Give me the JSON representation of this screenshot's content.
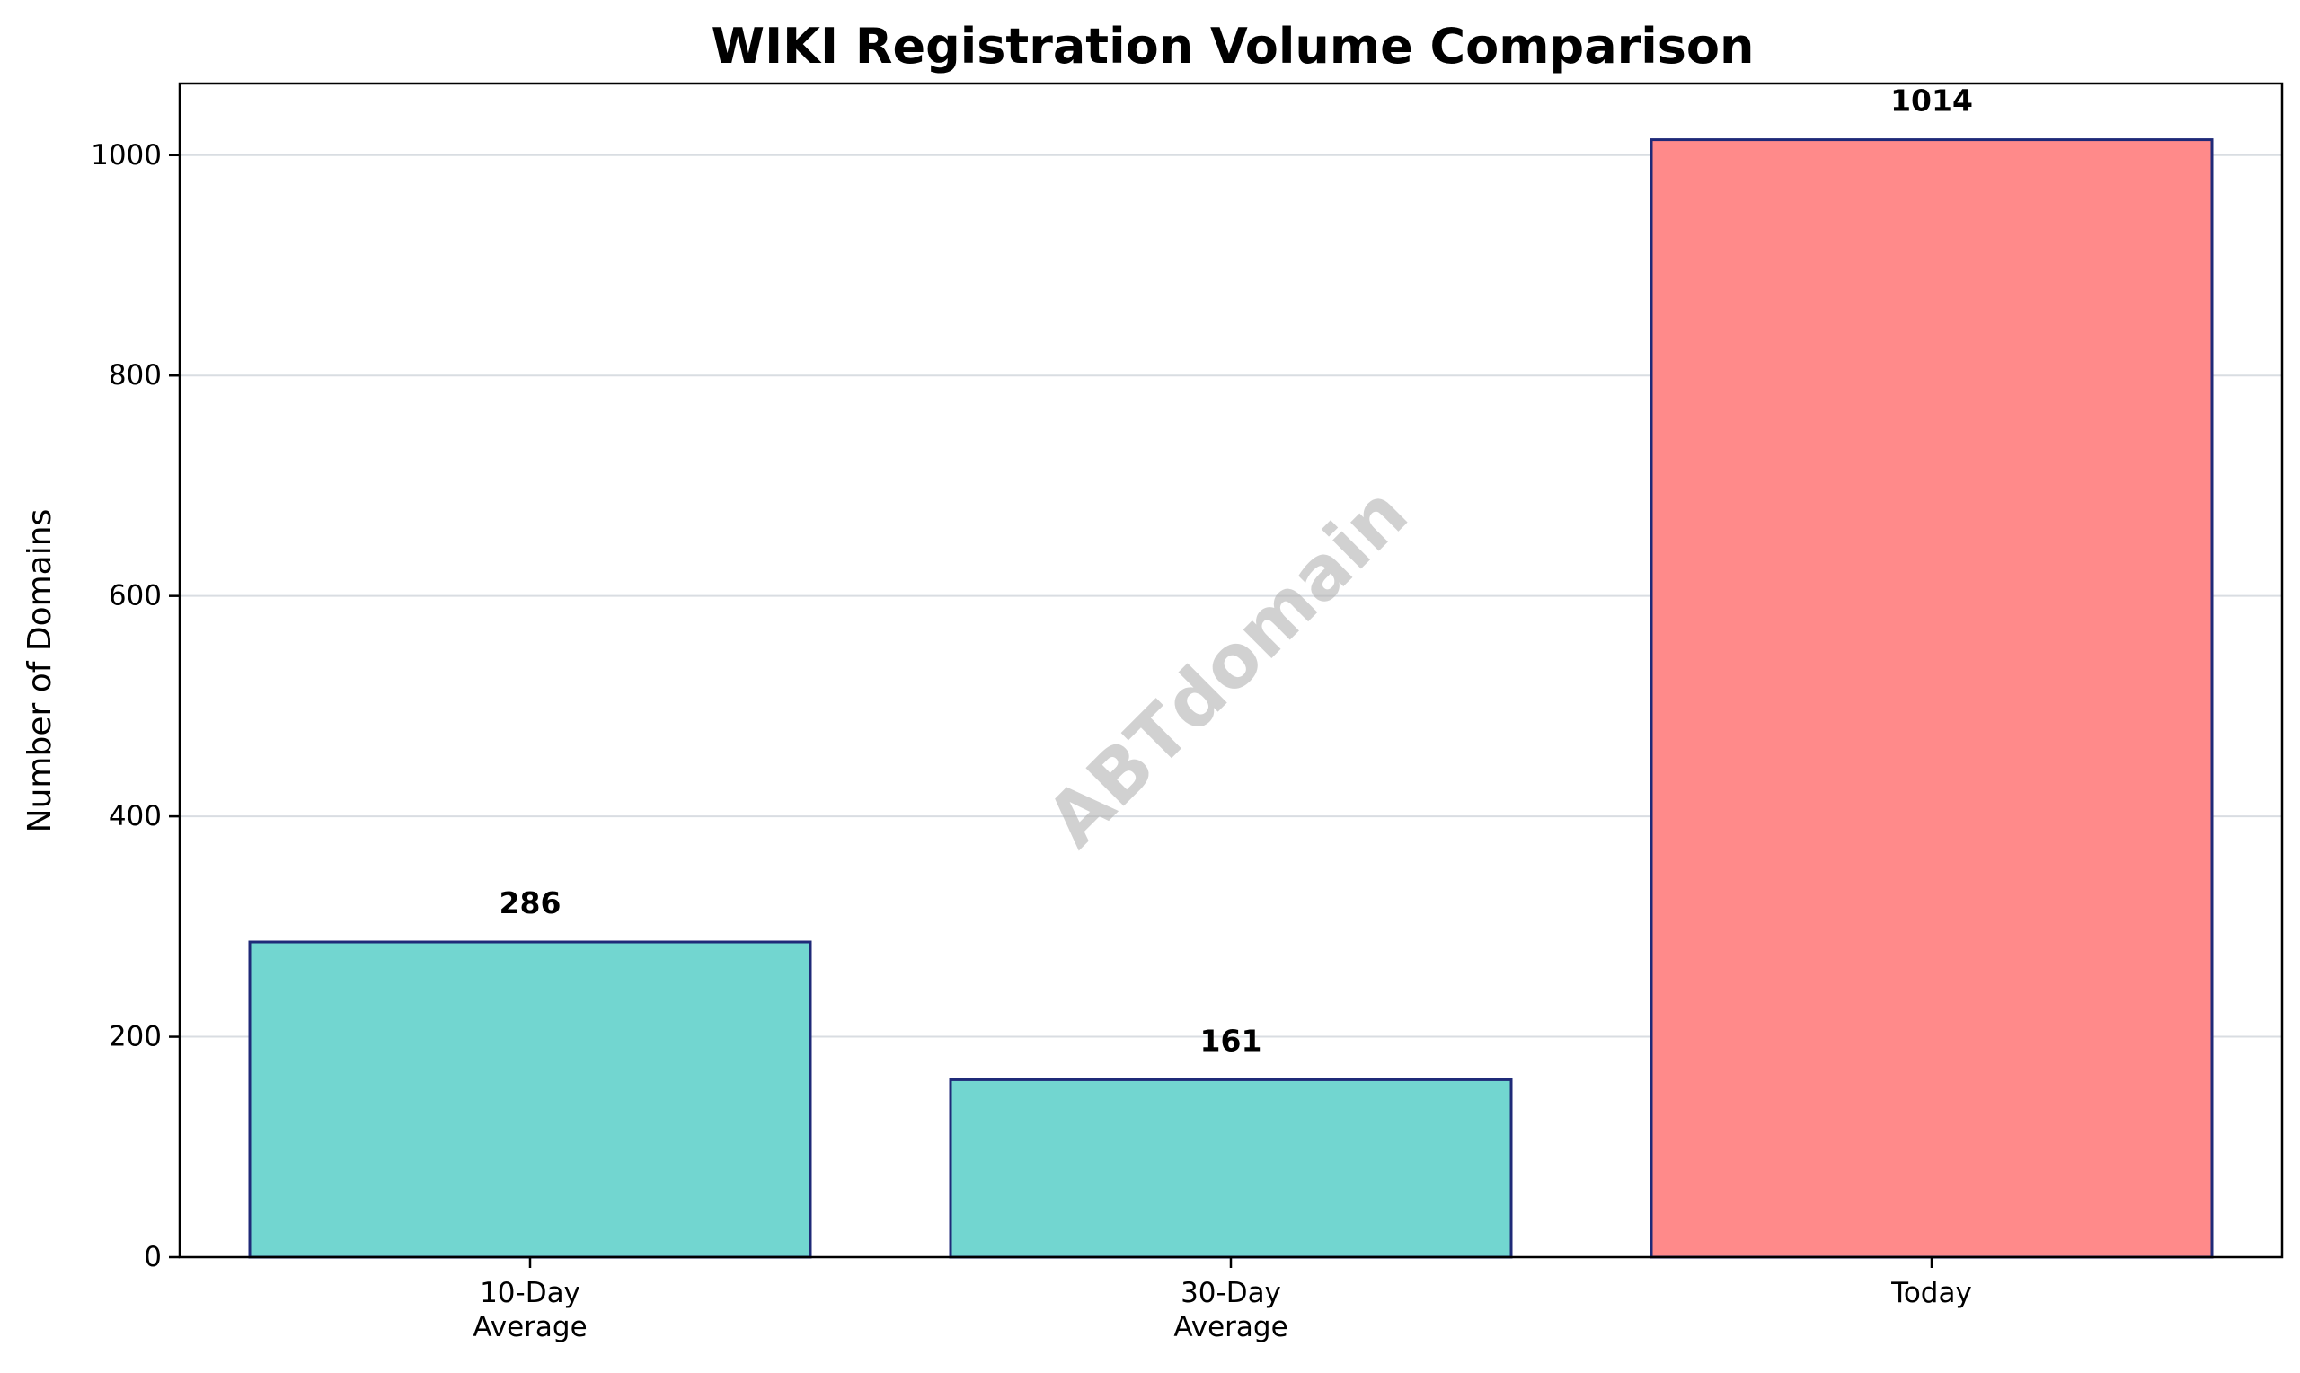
{
  "chart_data": {
    "type": "bar",
    "title": "WIKI Registration Volume Comparison",
    "xlabel": "",
    "ylabel": "Number of Domains",
    "categories": [
      [
        "10-Day",
        "Average"
      ],
      [
        "30-Day",
        "Average"
      ],
      [
        "Today"
      ]
    ],
    "values": [
      286,
      161,
      1014
    ],
    "value_labels": [
      "286",
      "161",
      "1014"
    ],
    "bar_colors": [
      "#72d6d0",
      "#72d6d0",
      "#ff8a8a"
    ],
    "bar_edge_color": "#1f2a78",
    "ylim": [
      0,
      1065
    ],
    "yticks": [
      0,
      200,
      400,
      600,
      800,
      1000
    ],
    "ytick_labels": [
      "0",
      "200",
      "400",
      "600",
      "800",
      "1000"
    ],
    "grid": "y",
    "watermark": "ABTdomain"
  }
}
